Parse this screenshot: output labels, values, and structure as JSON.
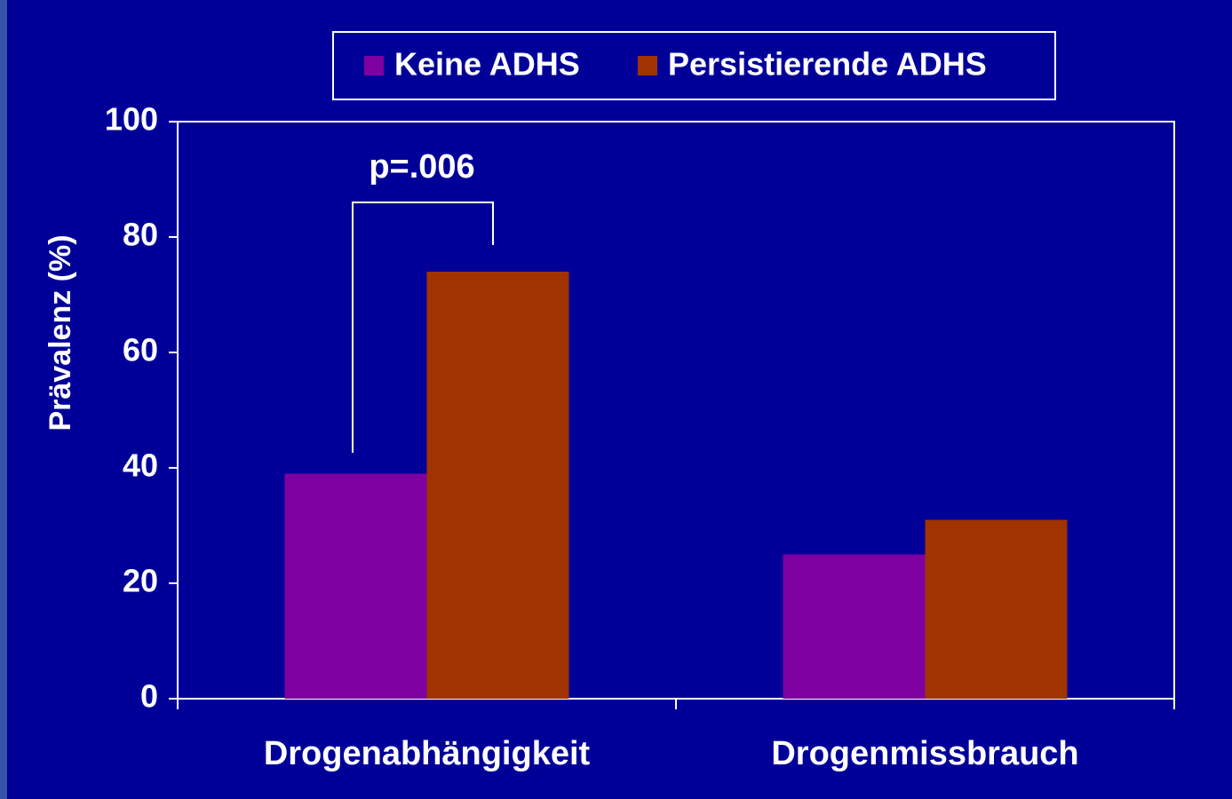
{
  "chart_data": {
    "type": "bar",
    "y_axis_label": "Prävalenz (%)",
    "annotation": "p=.006",
    "categories": [
      "Drogenabhängigkeit",
      "Drogenmissbrauch"
    ],
    "series": [
      {
        "name": "Keine ADHS",
        "color": "#7f00a0",
        "values": [
          39,
          25
        ]
      },
      {
        "name": "Persistierende ADHS",
        "color": "#a03300",
        "values": [
          74,
          31
        ]
      }
    ],
    "ylim": [
      0,
      100
    ],
    "yticks": [
      0,
      20,
      40,
      60,
      80,
      100
    ],
    "legend": "top"
  }
}
